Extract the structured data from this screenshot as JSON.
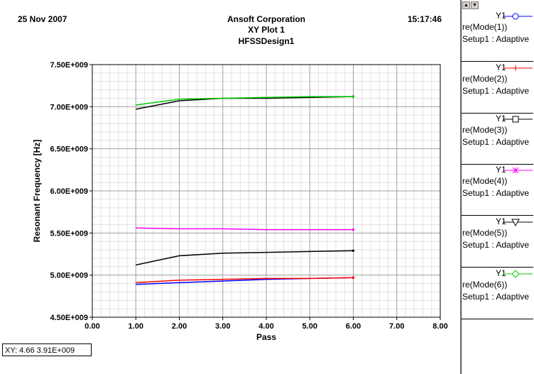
{
  "header": {
    "date": "25 Nov 2007",
    "company": "Ansoft Corporation",
    "plot_title": "XY Plot 1",
    "design": "HFSSDesign1",
    "time": "15:17:46"
  },
  "status_readout": "XY: 4.66  3.91E+009",
  "legend": {
    "scroll_up": "▲",
    "scroll_down": "▼",
    "entries": [
      {
        "axis": "Y1",
        "expr": "re(Mode(1))",
        "setup": "Setup1 : Adaptive",
        "color": "#0000ff",
        "marker": "circle-icon"
      },
      {
        "axis": "Y1",
        "expr": "re(Mode(2))",
        "setup": "Setup1 : Adaptive",
        "color": "#ff0000",
        "marker": "plus-icon"
      },
      {
        "axis": "Y1",
        "expr": "re(Mode(3))",
        "setup": "Setup1 : Adaptive",
        "color": "#000000",
        "marker": "square-icon"
      },
      {
        "axis": "Y1",
        "expr": "re(Mode(4))",
        "setup": "Setup1 : Adaptive",
        "color": "#ff00ff",
        "marker": "asterisk-icon"
      },
      {
        "axis": "Y1",
        "expr": "re(Mode(5))",
        "setup": "Setup1 : Adaptive",
        "color": "#000000",
        "marker": "triangle-down-icon"
      },
      {
        "axis": "Y1",
        "expr": "re(Mode(6))",
        "setup": "Setup1 : Adaptive",
        "color": "#00cc00",
        "marker": "diamond-icon"
      }
    ]
  },
  "chart_data": {
    "type": "line",
    "title": "",
    "xlabel": "Pass",
    "ylabel": "Resonant Frequency [Hz]",
    "xlim": [
      0,
      8
    ],
    "ylim": [
      4500000000.0,
      7500000000.0
    ],
    "x_ticks": [
      "0.00",
      "1.00",
      "2.00",
      "3.00",
      "4.00",
      "5.00",
      "6.00",
      "7.00",
      "8.00"
    ],
    "y_ticks": [
      "4.50E+009",
      "5.00E+009",
      "5.50E+009",
      "6.00E+009",
      "6.50E+009",
      "7.00E+009",
      "7.50E+009"
    ],
    "grid": true,
    "x": [
      1,
      2,
      3,
      4,
      5,
      6
    ],
    "series": [
      {
        "name": "re(Mode(1))",
        "color": "#0000ff",
        "values": [
          4890000000.0,
          4910000000.0,
          4930000000.0,
          4950000000.0,
          4960000000.0,
          4970000000.0
        ]
      },
      {
        "name": "re(Mode(2))",
        "color": "#ff0000",
        "values": [
          4910000000.0,
          4940000000.0,
          4950000000.0,
          4960000000.0,
          4960000000.0,
          4970000000.0
        ]
      },
      {
        "name": "re(Mode(3))",
        "color": "#000000",
        "values": [
          6970000000.0,
          7070000000.0,
          7100000000.0,
          7100000000.0,
          7110000000.0,
          7120000000.0
        ]
      },
      {
        "name": "re(Mode(4))",
        "color": "#ff00ff",
        "values": [
          5560000000.0,
          5550000000.0,
          5550000000.0,
          5540000000.0,
          5540000000.0,
          5540000000.0
        ]
      },
      {
        "name": "re(Mode(5))",
        "color": "#000000",
        "values": [
          5120000000.0,
          5230000000.0,
          5260000000.0,
          5270000000.0,
          5280000000.0,
          5290000000.0
        ]
      },
      {
        "name": "re(Mode(6))",
        "color": "#00cc00",
        "values": [
          7020000000.0,
          7090000000.0,
          7100000000.0,
          7110000000.0,
          7120000000.0,
          7120000000.0
        ]
      }
    ]
  }
}
